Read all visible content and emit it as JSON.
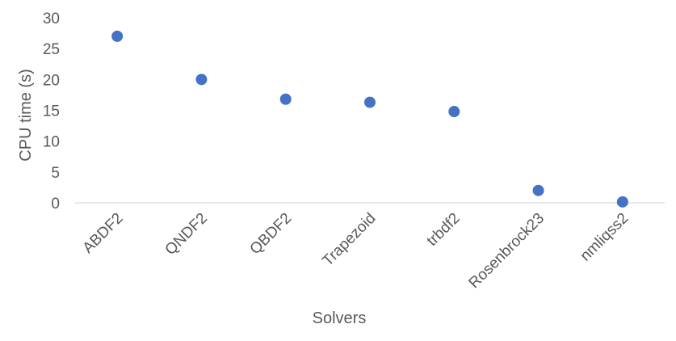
{
  "chart_data": {
    "type": "scatter",
    "title": "",
    "xlabel": "Solvers",
    "ylabel": "CPU time (s)",
    "categories": [
      "ABDF2",
      "QNDF2",
      "QBDF2",
      "Trapezoid",
      "trbdf2",
      "Rosenbrock23",
      "nmliqss2"
    ],
    "values": [
      27.0,
      20.0,
      16.8,
      16.3,
      14.8,
      2.0,
      0.15
    ],
    "ylim": [
      0,
      30
    ],
    "yticks": [
      "0",
      "5",
      "10",
      "15",
      "20",
      "25",
      "30"
    ],
    "grid": false,
    "legend": "none",
    "marker_color": "#4472C4",
    "axis_color": "#D9D9D9"
  }
}
